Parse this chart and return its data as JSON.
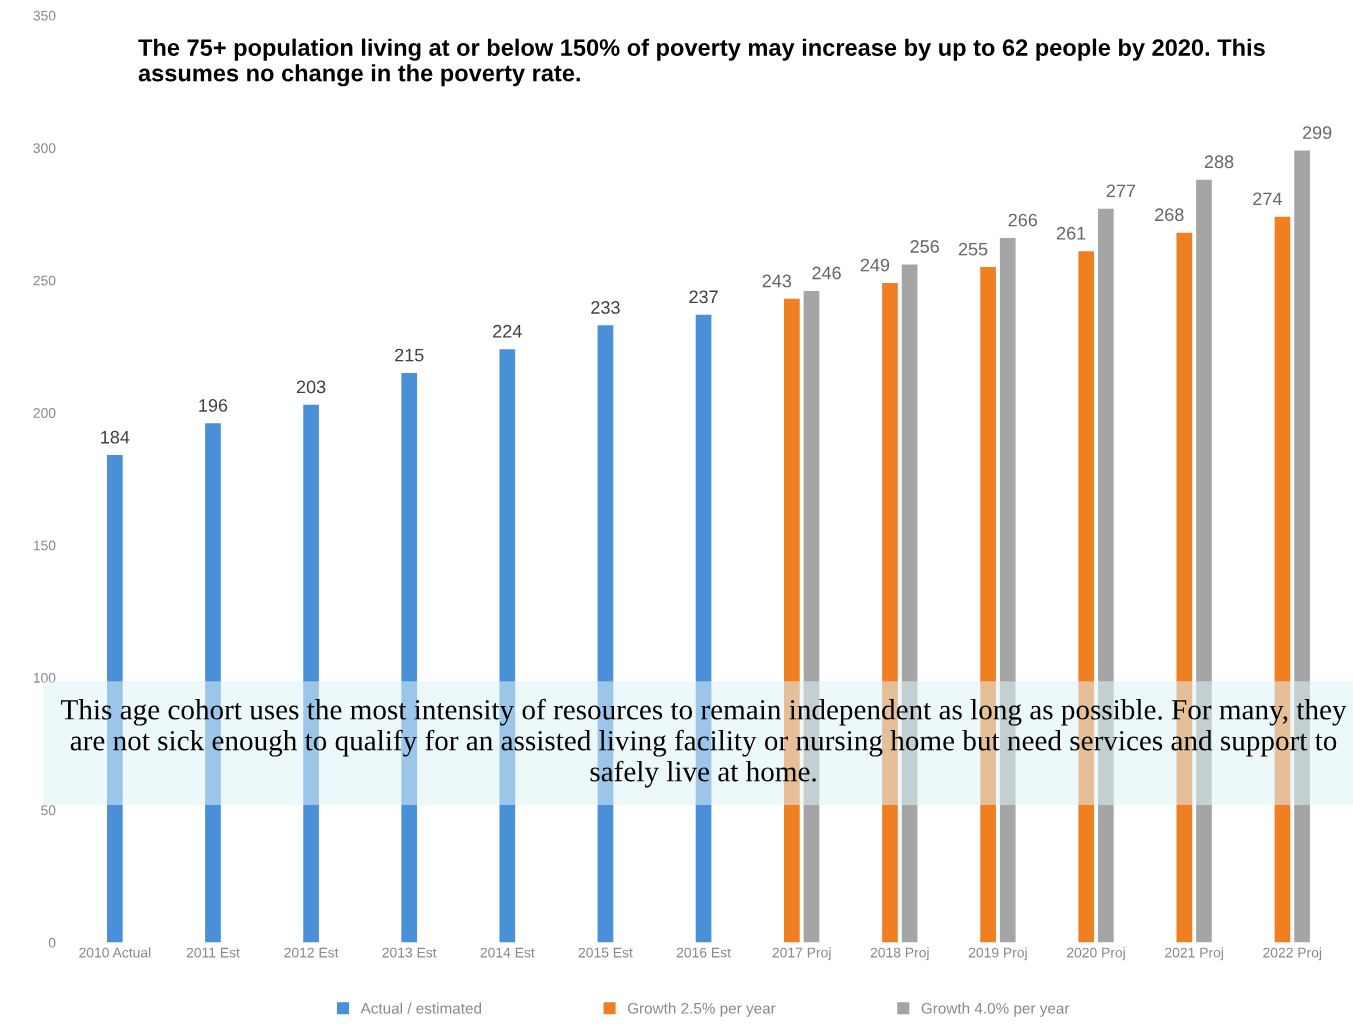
{
  "chart_data": {
    "type": "bar",
    "title": "The 75+ population living at or below 150% of poverty may increase by up to 62 people by 2020. This assumes no change in the poverty rate.",
    "categories": [
      "2010 Actual",
      "2011 Est",
      "2012 Est",
      "2013 Est",
      "2014 Est",
      "2015 Est",
      "2016 Est",
      "2017 Proj",
      "2018 Proj",
      "2019 Proj",
      "2020 Proj",
      "2021 Proj",
      "2022 Proj"
    ],
    "series": [
      {
        "name": "Actual / estimated",
        "color": "#4a90d9",
        "values": [
          184,
          196,
          203,
          215,
          224,
          233,
          237,
          null,
          null,
          null,
          null,
          null,
          null
        ]
      },
      {
        "name": "Growth 2.5% per year",
        "color": "#f07f22",
        "values": [
          null,
          null,
          null,
          null,
          null,
          null,
          null,
          243,
          249,
          255,
          261,
          268,
          274
        ]
      },
      {
        "name": "Growth 4.0% per year",
        "color": "#a5a5a5",
        "values": [
          null,
          null,
          null,
          null,
          null,
          null,
          null,
          246,
          256,
          266,
          277,
          288,
          299
        ]
      }
    ],
    "ylim": [
      0,
      350
    ],
    "yticks": [
      0,
      50,
      100,
      150,
      200,
      250,
      300,
      350
    ],
    "grid": false,
    "legend": "bottom",
    "data_labels": true,
    "annotations": [
      "This age cohort uses the most intensity of resources to remain independent as long as possible. For many, they are not sick enough to qualify for an assisted living facility or nursing home but need services and support to safely live at home."
    ]
  }
}
